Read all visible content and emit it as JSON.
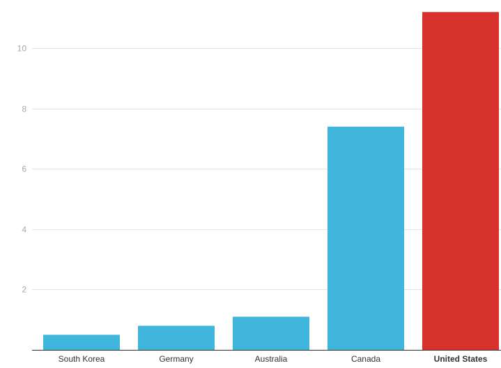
{
  "chart_data": {
    "type": "bar",
    "categories": [
      "South Korea",
      "Germany",
      "Australia",
      "Canada",
      "United States"
    ],
    "values": [
      0.5,
      0.8,
      1.1,
      7.4,
      11.2
    ],
    "highlight": [
      "United States"
    ],
    "colors": {
      "default": "#41b6dc",
      "highlight": "#d6312b"
    },
    "yticks": [
      2,
      4,
      6,
      8,
      10
    ],
    "ylim": [
      0,
      11.6
    ],
    "grid": true,
    "title": "",
    "xlabel": "",
    "ylabel": ""
  }
}
